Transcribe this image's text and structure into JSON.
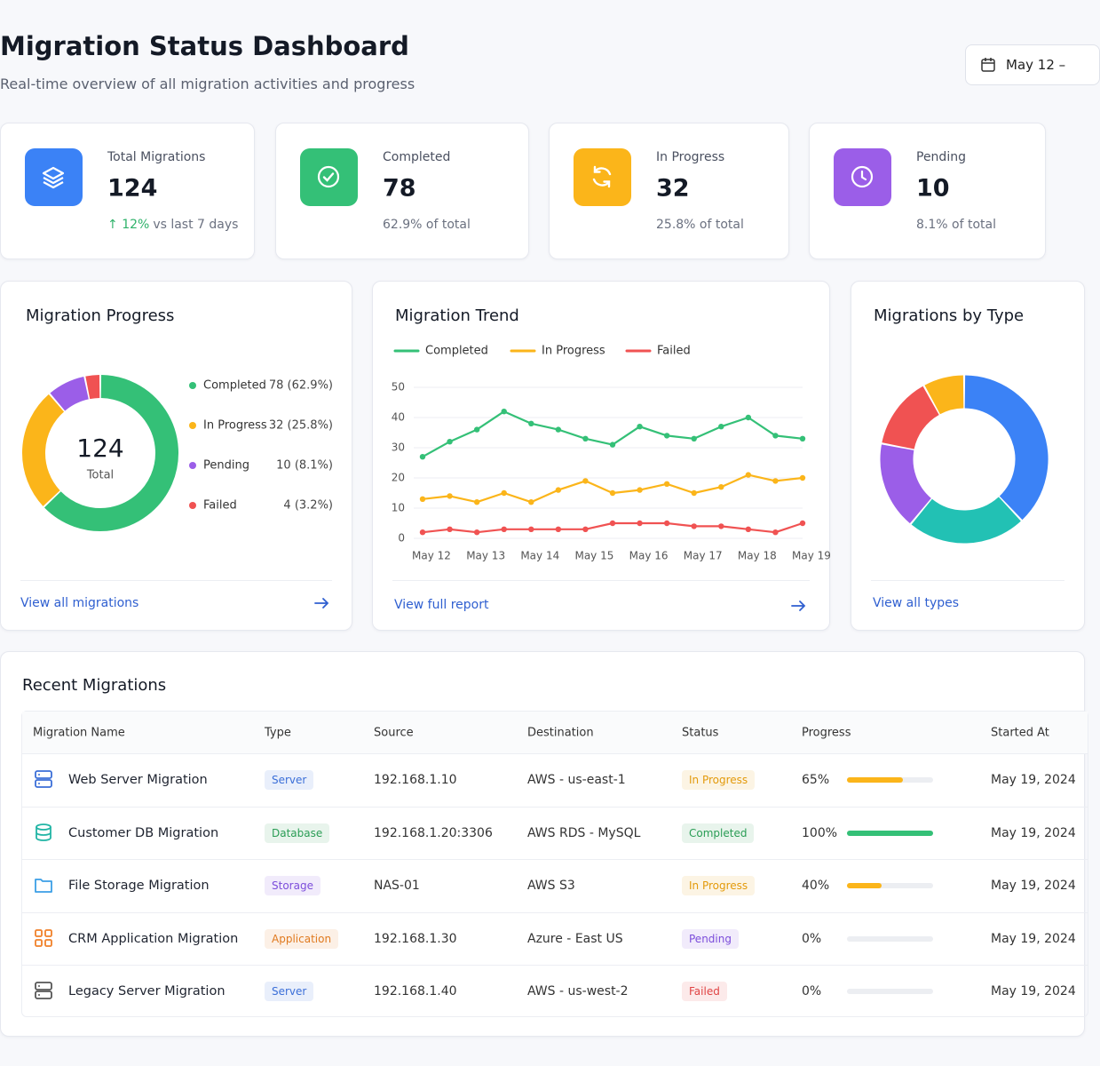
{
  "header": {
    "title": "Migration Status Dashboard",
    "subtitle": "Real-time overview of all migration activities and progress",
    "date_range": "May 12 –"
  },
  "stats": [
    {
      "label": "Total Migrations",
      "value": 124,
      "change": "12%",
      "note": "vs last 7 days",
      "color": "#3b82f6"
    },
    {
      "label": "Completed",
      "value": 78,
      "note": "62.9% of total",
      "color": "#34c077"
    },
    {
      "label": "In Progress",
      "value": 32,
      "note": "25.8% of total",
      "color": "#fbb51a"
    },
    {
      "label": "Pending",
      "value": 10,
      "note": "8.1% of total",
      "color": "#9b5ee8"
    }
  ],
  "chart_data": [
    {
      "type": "donut",
      "title": "Migration Progress",
      "total": 124,
      "total_label": "Total",
      "categories": [
        "Completed",
        "In Progress",
        "Pending",
        "Failed"
      ],
      "values": [
        78,
        32,
        10,
        4
      ],
      "value_labels": [
        "78 (62.9%)",
        "32 (25.8%)",
        "10 (8.1%)",
        "4 (3.2%)"
      ],
      "colors": [
        "#34c077",
        "#fbb51a",
        "#9b5ee8",
        "#f05252"
      ],
      "link": "View all migrations"
    },
    {
      "type": "line",
      "title": "Migration Trend",
      "categories": [
        "May 12",
        null,
        "May 13",
        null,
        "May 14",
        null,
        "May 15",
        null,
        "May 16",
        null,
        "May 17",
        null,
        "May 18",
        null,
        "May 19"
      ],
      "series": [
        {
          "name": "Completed",
          "color": "#34c077",
          "values": [
            27,
            32,
            36,
            42,
            38,
            36,
            33,
            31,
            37,
            34,
            33,
            37,
            40,
            34,
            33
          ]
        },
        {
          "name": "In Progress",
          "color": "#fbb51a",
          "values": [
            13,
            14,
            12,
            15,
            12,
            16,
            19,
            15,
            16,
            18,
            15,
            17,
            21,
            19,
            20
          ]
        },
        {
          "name": "Failed",
          "color": "#f05252",
          "values": [
            2,
            3,
            2,
            3,
            3,
            3,
            3,
            5,
            5,
            5,
            4,
            4,
            3,
            2,
            5
          ]
        }
      ],
      "ylim": [
        0,
        50
      ],
      "yticks": [
        0,
        10,
        20,
        30,
        40,
        50
      ],
      "grid": true,
      "legend": "top",
      "link": "View full report"
    },
    {
      "type": "donut",
      "title": "Migrations by Type",
      "values": [
        38,
        23,
        17,
        14,
        8
      ],
      "colors": [
        "#3b82f6",
        "#22c1b4",
        "#9b5ee8",
        "#f05252",
        "#fbb51a"
      ],
      "link": "View all types"
    }
  ],
  "table": {
    "title": "Recent Migrations",
    "columns": [
      "Migration Name",
      "Type",
      "Source",
      "Destination",
      "Status",
      "Progress",
      "Started At"
    ],
    "rows": [
      {
        "name": "Web Server Migration",
        "type": "Server",
        "type_color": "#3b6fd8",
        "source": "192.168.1.10",
        "destination": "AWS - us-east-1",
        "status": "In Progress",
        "status_color": "#e39a0b",
        "progress": 65,
        "progress_label": "65%",
        "started": "May 19, 2024"
      },
      {
        "name": "Customer DB Migration",
        "type": "Database",
        "type_color": "#2a9d55",
        "source": "192.168.1.20:3306",
        "destination": "AWS RDS - MySQL",
        "status": "Completed",
        "status_color": "#2a9d55",
        "progress": 100,
        "progress_label": "100%",
        "started": "May 19, 2024"
      },
      {
        "name": "File Storage Migration",
        "type": "Storage",
        "type_color": "#7c4ddb",
        "source": "NAS-01",
        "destination": "AWS S3",
        "status": "In Progress",
        "status_color": "#e39a0b",
        "progress": 40,
        "progress_label": "40%",
        "started": "May 19, 2024"
      },
      {
        "name": "CRM Application Migration",
        "type": "Application",
        "type_color": "#e07a1f",
        "source": "192.168.1.30",
        "destination": "Azure - East US",
        "status": "Pending",
        "status_color": "#7c4ddb",
        "progress": 0,
        "progress_label": "0%",
        "started": "May 19, 2024"
      },
      {
        "name": "Legacy Server Migration",
        "type": "Server",
        "type_color": "#3b6fd8",
        "source": "192.168.1.40",
        "destination": "AWS - us-west-2",
        "status": "Failed",
        "status_color": "#e04444",
        "progress": 0,
        "progress_label": "0%",
        "started": "May 19, 2024"
      }
    ]
  }
}
